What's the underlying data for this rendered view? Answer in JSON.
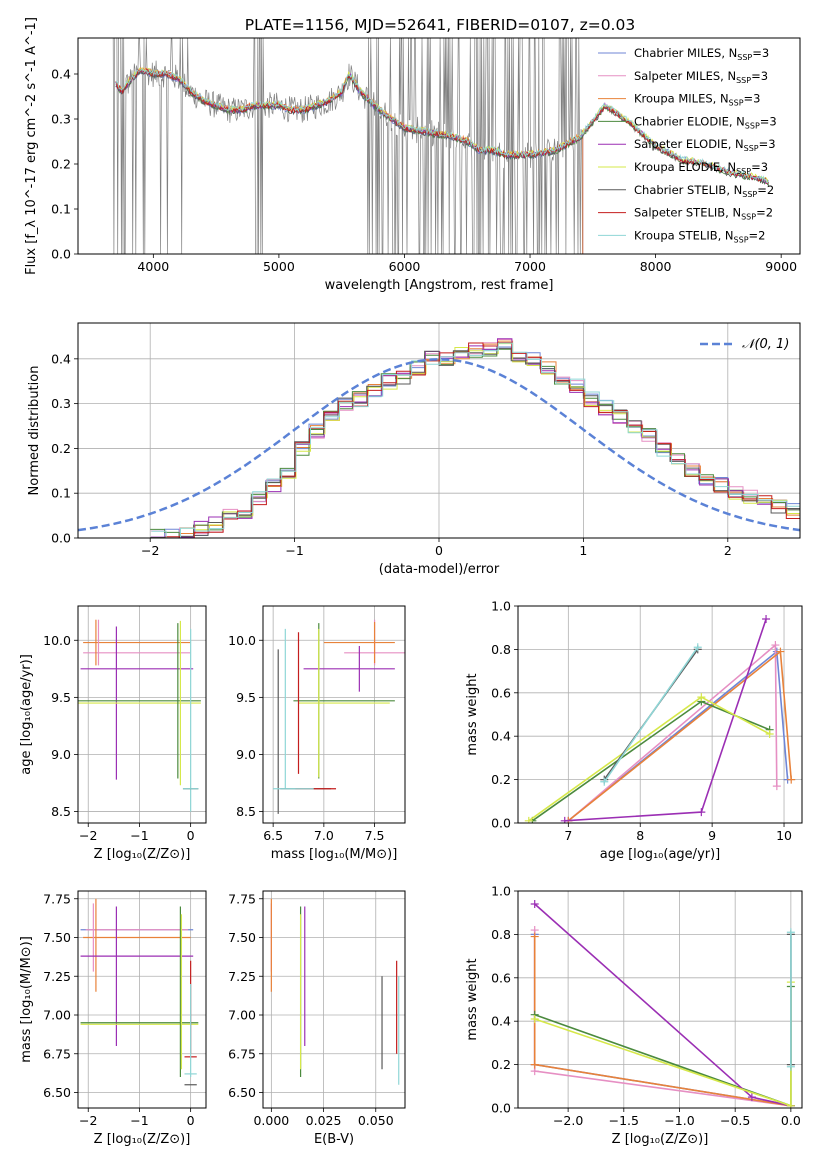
{
  "figure_title": "PLATE=1156, MJD=52641, FIBERID=0107, z=0.03",
  "colors": {
    "Chabrier MILES": "#6f86d6",
    "Salpeter MILES": "#e68fc3",
    "Kroupa MILES": "#e8823a",
    "Chabrier ELODIE": "#4b8a3e",
    "Salpeter ELODIE": "#9b2fb4",
    "Kroupa ELODIE": "#d6e84a",
    "Chabrier STELIB": "#5a5a5a",
    "Salpeter STELIB": "#c41e1e",
    "Kroupa STELIB": "#8fd6d6",
    "gaussian": "#5b82d6"
  },
  "chart_data": [
    {
      "id": "spectrum",
      "type": "line",
      "xlabel": "wavelength [Angstrom, rest frame]",
      "ylabel": "Flux [f_λ 10^-17 erg cm^-2 s^-1 A^-1]",
      "xlim": [
        3400,
        9150
      ],
      "ylim": [
        0,
        0.48
      ],
      "xticks": [
        4000,
        5000,
        6000,
        7000,
        8000,
        9000
      ],
      "yticks": [
        0.0,
        0.1,
        0.2,
        0.3,
        0.4
      ],
      "legend_loc": "upper right",
      "legend": [
        {
          "label": "Chabrier MILES, N",
          "sub": "SSP",
          "tail": "=3"
        },
        {
          "label": "Salpeter MILES, N",
          "sub": "SSP",
          "tail": "=3"
        },
        {
          "label": "Kroupa MILES, N",
          "sub": "SSP",
          "tail": "=3"
        },
        {
          "label": "Chabrier ELODIE, N",
          "sub": "SSP",
          "tail": "=3"
        },
        {
          "label": "Salpeter ELODIE, N",
          "sub": "SSP",
          "tail": "=3"
        },
        {
          "label": "Kroupa ELODIE, N",
          "sub": "SSP",
          "tail": "=3"
        },
        {
          "label": "Chabrier STELIB, N",
          "sub": "SSP",
          "tail": "=2"
        },
        {
          "label": "Salpeter STELIB, N",
          "sub": "SSP",
          "tail": "=2"
        },
        {
          "label": "Kroupa STELIB, N",
          "sub": "SSP",
          "tail": "=2"
        }
      ],
      "data_color": "#808080",
      "model_continuum": {
        "x": [
          3700,
          3750,
          3800,
          3900,
          4000,
          4100,
          4200,
          4300,
          4400,
          4500,
          4600,
          4700,
          4800,
          4900,
          5000,
          5100,
          5200,
          5300,
          5400,
          5500,
          5560,
          5650,
          5800,
          6000,
          6200,
          6400,
          6500,
          6600,
          6700,
          6800,
          7000,
          7200,
          7400,
          7600,
          7700,
          7800,
          8000,
          8200,
          8400,
          8600,
          8800,
          8900
        ],
        "y": [
          0.38,
          0.36,
          0.38,
          0.41,
          0.4,
          0.4,
          0.39,
          0.36,
          0.34,
          0.33,
          0.32,
          0.32,
          0.33,
          0.33,
          0.33,
          0.32,
          0.32,
          0.33,
          0.34,
          0.36,
          0.4,
          0.36,
          0.32,
          0.28,
          0.27,
          0.26,
          0.25,
          0.23,
          0.23,
          0.22,
          0.22,
          0.23,
          0.26,
          0.33,
          0.31,
          0.29,
          0.24,
          0.21,
          0.2,
          0.18,
          0.17,
          0.16
        ]
      }
    },
    {
      "id": "residuals",
      "type": "line",
      "xlabel": "(data-model)/error",
      "ylabel": "Normed distribution",
      "xlim": [
        -2.5,
        2.5
      ],
      "ylim": [
        0,
        0.48
      ],
      "xticks": [
        -2,
        -1,
        0,
        1,
        2
      ],
      "yticks": [
        0.0,
        0.1,
        0.2,
        0.3,
        0.4
      ],
      "grid": true,
      "legend": [
        {
          "label": "𝒩(0, 1)"
        }
      ],
      "legend_loc": "upper right",
      "bin_width": 0.1,
      "bin_start": -2.0,
      "hist": [
        0.002,
        0.004,
        0.008,
        0.02,
        0.03,
        0.05,
        0.06,
        0.09,
        0.12,
        0.15,
        0.2,
        0.24,
        0.27,
        0.3,
        0.31,
        0.33,
        0.35,
        0.36,
        0.38,
        0.4,
        0.4,
        0.41,
        0.42,
        0.42,
        0.43,
        0.41,
        0.4,
        0.38,
        0.36,
        0.34,
        0.31,
        0.29,
        0.27,
        0.25,
        0.23,
        0.2,
        0.18,
        0.15,
        0.13,
        0.12,
        0.1,
        0.09,
        0.08,
        0.07,
        0.06,
        0.05
      ]
    },
    {
      "id": "age_vs_Z",
      "type": "scatter",
      "xlabel": "Z [log₁₀(Z/Z⊙)]",
      "ylabel": "age  [log₁₀(age/yr)]",
      "xlim": [
        -2.2,
        0.3
      ],
      "ylim": [
        8.4,
        10.3
      ],
      "xticks": [
        -2,
        -1,
        0
      ],
      "yticks": [
        8.5,
        9.0,
        9.5,
        10.0
      ],
      "grid": true,
      "points": [
        {
          "s": "Salpeter MILES",
          "x": -1.05,
          "xe": 1.05,
          "y": 9.89,
          "ye": 0
        },
        {
          "s": "Kroupa MILES",
          "x": -1.05,
          "xe": 1.05,
          "y": 9.98,
          "ye": 0
        },
        {
          "s": "Salpeter MILES",
          "x": -1.8,
          "xe": 0,
          "y": 9.98,
          "ye": 0.2
        },
        {
          "s": "Kroupa MILES",
          "x": -1.85,
          "xe": 0,
          "y": 9.98,
          "ye": 0.2
        },
        {
          "s": "Salpeter ELODIE",
          "x": -1.05,
          "xe": 1.1,
          "y": 9.75,
          "ye": 0
        },
        {
          "s": "Salpeter ELODIE",
          "x": -1.45,
          "xe": 0,
          "y": 9.45,
          "ye": 0.67
        },
        {
          "s": "Chabrier ELODIE",
          "x": -1.0,
          "xe": 1.2,
          "y": 9.47,
          "ye": 0
        },
        {
          "s": "Kroupa ELODIE",
          "x": -1.0,
          "xe": 1.2,
          "y": 9.45,
          "ye": 0
        },
        {
          "s": "Chabrier ELODIE",
          "x": -0.25,
          "xe": 0,
          "y": 9.47,
          "ye": 0.68
        },
        {
          "s": "Kroupa ELODIE",
          "x": -0.2,
          "xe": 0,
          "y": 9.45,
          "ye": 0.72
        },
        {
          "s": "Kroupa STELIB",
          "x": 0.0,
          "xe": 0,
          "y": 9.3,
          "ye": 0.8
        },
        {
          "s": "Chabrier STELIB",
          "x": 0.0,
          "xe": 0.15,
          "y": 8.7,
          "ye": 0
        },
        {
          "s": "Kroupa STELIB",
          "x": 0.0,
          "xe": 0.15,
          "y": 8.7,
          "ye": 0
        }
      ]
    },
    {
      "id": "age_vs_mass",
      "type": "scatter",
      "xlabel": "mass [log₁₀(M/M⊙)]",
      "ylabel": "",
      "xlim": [
        6.4,
        7.8
      ],
      "ylim": [
        8.4,
        10.3
      ],
      "xticks": [
        6.5,
        7.0,
        7.5
      ],
      "yticks": [
        8.5,
        9.0,
        9.5,
        10.0
      ],
      "grid": true,
      "points": [
        {
          "s": "Salpeter MILES",
          "x": 7.5,
          "xe": 0.3,
          "y": 9.89,
          "ye": 0
        },
        {
          "s": "Kroupa MILES",
          "x": 7.35,
          "xe": 0.35,
          "y": 9.98,
          "ye": 0
        },
        {
          "s": "Salpeter MILES",
          "x": 7.5,
          "xe": 0,
          "y": 9.98,
          "ye": 0.2
        },
        {
          "s": "Kroupa MILES",
          "x": 7.5,
          "xe": 0,
          "y": 9.98,
          "ye": 0.18
        },
        {
          "s": "Salpeter ELODIE",
          "x": 7.25,
          "xe": 0.45,
          "y": 9.75,
          "ye": 0
        },
        {
          "s": "Salpeter ELODIE",
          "x": 7.35,
          "xe": 0,
          "y": 9.75,
          "ye": 0.2
        },
        {
          "s": "Chabrier ELODIE",
          "x": 7.2,
          "xe": 0.5,
          "y": 9.47,
          "ye": 0
        },
        {
          "s": "Kroupa ELODIE",
          "x": 7.2,
          "xe": 0.45,
          "y": 9.45,
          "ye": 0
        },
        {
          "s": "Chabrier ELODIE",
          "x": 6.95,
          "xe": 0,
          "y": 9.47,
          "ye": 0.68
        },
        {
          "s": "Kroupa ELODIE",
          "x": 6.95,
          "xe": 0,
          "y": 9.45,
          "ye": 0.65
        },
        {
          "s": "Chabrier STELIB",
          "x": 6.55,
          "xe": 0,
          "y": 9.2,
          "ye": 0.72
        },
        {
          "s": "Kroupa STELIB",
          "x": 6.62,
          "xe": 0,
          "y": 9.4,
          "ye": 0.7
        },
        {
          "s": "Salpeter STELIB",
          "x": 6.75,
          "xe": 0,
          "y": 9.45,
          "ye": 0.62
        },
        {
          "s": "Chabrier STELIB",
          "x": 6.82,
          "xe": 0.25,
          "y": 8.7,
          "ye": 0
        },
        {
          "s": "Salpeter STELIB",
          "x": 6.92,
          "xe": 0.2,
          "y": 8.7,
          "ye": 0
        },
        {
          "s": "Kroupa STELIB",
          "x": 6.7,
          "xe": 0.2,
          "y": 8.7,
          "ye": 0
        }
      ]
    },
    {
      "id": "weight_vs_age",
      "type": "line",
      "xlabel": "age  [log₁₀(age/yr)]",
      "ylabel": "mass weight",
      "xlim": [
        6.3,
        10.25
      ],
      "ylim": [
        0,
        1.0
      ],
      "xticks": [
        7,
        8,
        9,
        10
      ],
      "yticks": [
        0.0,
        0.2,
        0.4,
        0.6,
        0.8,
        1.0
      ],
      "grid": true,
      "series": [
        {
          "s": "Chabrier MILES",
          "x": [
            7.0,
            9.9,
            10.05
          ],
          "y": [
            0.01,
            0.79,
            0.2
          ]
        },
        {
          "s": "Salpeter MILES",
          "x": [
            7.0,
            9.88,
            9.9
          ],
          "y": [
            0.01,
            0.82,
            0.17
          ]
        },
        {
          "s": "Kroupa MILES",
          "x": [
            7.0,
            9.95,
            10.1
          ],
          "y": [
            0.01,
            0.79,
            0.2
          ]
        },
        {
          "s": "Chabrier ELODIE",
          "x": [
            6.5,
            8.85,
            9.8
          ],
          "y": [
            0.01,
            0.56,
            0.43
          ]
        },
        {
          "s": "Salpeter ELODIE",
          "x": [
            6.95,
            8.85,
            9.75
          ],
          "y": [
            0.01,
            0.05,
            0.94
          ]
        },
        {
          "s": "Kroupa ELODIE",
          "x": [
            6.45,
            8.85,
            9.8
          ],
          "y": [
            0.01,
            0.58,
            0.41
          ]
        },
        {
          "s": "Chabrier STELIB",
          "x": [
            7.5,
            8.8
          ],
          "y": [
            0.2,
            0.8
          ]
        },
        {
          "s": "Kroupa STELIB",
          "x": [
            7.5,
            8.8
          ],
          "y": [
            0.19,
            0.81
          ]
        }
      ]
    },
    {
      "id": "mass_vs_Z",
      "type": "scatter",
      "xlabel": "Z [log₁₀(Z/Z⊙)]",
      "ylabel": "mass [log₁₀(M/M⊙)]",
      "xlim": [
        -2.2,
        0.3
      ],
      "ylim": [
        6.4,
        7.8
      ],
      "xticks": [
        -2,
        -1,
        0
      ],
      "yticks": [
        6.5,
        6.75,
        7.0,
        7.25,
        7.5,
        7.75
      ],
      "grid": true,
      "points": [
        {
          "s": "Chabrier MILES",
          "x": -1.05,
          "xe": 1.1,
          "y": 7.55,
          "ye": 0
        },
        {
          "s": "Salpeter MILES",
          "x": -1.05,
          "xe": 1.0,
          "y": 7.55,
          "ye": 0
        },
        {
          "s": "Kroupa MILES",
          "x": -1.05,
          "xe": 1.05,
          "y": 7.5,
          "ye": 0
        },
        {
          "s": "Salpeter MILES",
          "x": -1.9,
          "xe": 0,
          "y": 7.5,
          "ye": 0.22
        },
        {
          "s": "Kroupa MILES",
          "x": -1.85,
          "xe": 0,
          "y": 7.45,
          "ye": 0.3
        },
        {
          "s": "Salpeter ELODIE",
          "x": -1.05,
          "xe": 1.1,
          "y": 7.38,
          "ye": 0
        },
        {
          "s": "Salpeter ELODIE",
          "x": -1.45,
          "xe": 0,
          "y": 7.25,
          "ye": 0.45
        },
        {
          "s": "Chabrier ELODIE",
          "x": -1.0,
          "xe": 1.15,
          "y": 6.95,
          "ye": 0
        },
        {
          "s": "Kroupa ELODIE",
          "x": -1.0,
          "xe": 1.15,
          "y": 6.94,
          "ye": 0
        },
        {
          "s": "Chabrier ELODIE",
          "x": -0.2,
          "xe": 0,
          "y": 7.15,
          "ye": 0.55
        },
        {
          "s": "Kroupa ELODIE",
          "x": -0.18,
          "xe": 0,
          "y": 7.15,
          "ye": 0.5
        },
        {
          "s": "Kroupa STELIB",
          "x": 0.0,
          "xe": 0.12,
          "y": 6.62,
          "ye": 0
        },
        {
          "s": "Salpeter STELIB",
          "x": 0.0,
          "xe": 0.12,
          "y": 6.73,
          "ye": 0
        },
        {
          "s": "Chabrier STELIB",
          "x": 0.0,
          "xe": 0.12,
          "y": 6.55,
          "ye": 0
        },
        {
          "s": "Salpeter STELIB",
          "x": 0.0,
          "xe": 0,
          "y": 7.05,
          "ye": 0.3
        },
        {
          "s": "Kroupa STELIB",
          "x": 0.0,
          "xe": 0,
          "y": 6.9,
          "ye": 0.3
        }
      ]
    },
    {
      "id": "mass_vs_ebv",
      "type": "scatter",
      "xlabel": "E(B-V)",
      "ylabel": "",
      "xlim": [
        -0.004,
        0.064
      ],
      "ylim": [
        6.4,
        7.8
      ],
      "xticks": [
        0.0,
        0.025,
        0.05
      ],
      "xticklabels": [
        "0.000",
        "0.025",
        "0.050"
      ],
      "yticks": [
        6.5,
        6.75,
        7.0,
        7.25,
        7.5,
        7.75
      ],
      "grid": true,
      "points": [
        {
          "s": "Salpeter MILES",
          "x": 0.0,
          "xe": 0,
          "y": 7.5,
          "ye": 0.22
        },
        {
          "s": "Kroupa MILES",
          "x": 0.0,
          "xe": 0,
          "y": 7.45,
          "ye": 0.3
        },
        {
          "s": "Salpeter ELODIE",
          "x": 0.016,
          "xe": 0,
          "y": 7.25,
          "ye": 0.45
        },
        {
          "s": "Chabrier ELODIE",
          "x": 0.014,
          "xe": 0,
          "y": 7.15,
          "ye": 0.55
        },
        {
          "s": "Kroupa ELODIE",
          "x": 0.014,
          "xe": 0,
          "y": 7.15,
          "ye": 0.5
        },
        {
          "s": "Chabrier STELIB",
          "x": 0.053,
          "xe": 0,
          "y": 6.95,
          "ye": 0.3
        },
        {
          "s": "Salpeter STELIB",
          "x": 0.06,
          "xe": 0,
          "y": 7.05,
          "ye": 0.3
        },
        {
          "s": "Kroupa STELIB",
          "x": 0.061,
          "xe": 0,
          "y": 6.9,
          "ye": 0.35
        }
      ]
    },
    {
      "id": "weight_vs_Z",
      "type": "line",
      "xlabel": "Z [log₁₀(Z/Z⊙)]",
      "ylabel": "mass weight",
      "xlim": [
        -2.45,
        0.1
      ],
      "ylim": [
        0,
        1.0
      ],
      "xticks": [
        -2.0,
        -1.5,
        -1.0,
        -0.5,
        0.0
      ],
      "xticklabels": [
        "−2.0",
        "−1.5",
        "−1.0",
        "−0.5",
        "0.0"
      ],
      "yticks": [
        0.0,
        0.2,
        0.4,
        0.6,
        0.8,
        1.0
      ],
      "grid": true,
      "series": [
        {
          "s": "Chabrier MILES",
          "x": [
            -2.3,
            -2.3,
            0.0
          ],
          "y": [
            0.8,
            0.2,
            0.01
          ]
        },
        {
          "s": "Salpeter MILES",
          "x": [
            -2.3,
            -2.3,
            0.0
          ],
          "y": [
            0.82,
            0.17,
            0.01
          ]
        },
        {
          "s": "Kroupa MILES",
          "x": [
            -2.3,
            -2.3,
            0.0
          ],
          "y": [
            0.79,
            0.2,
            0.01
          ]
        },
        {
          "s": "Chabrier ELODIE",
          "x": [
            -2.3,
            0.0,
            0.0
          ],
          "y": [
            0.43,
            0.01,
            0.56
          ]
        },
        {
          "s": "Salpeter ELODIE",
          "x": [
            -2.3,
            -0.35,
            0.0
          ],
          "y": [
            0.94,
            0.05,
            0.01
          ]
        },
        {
          "s": "Kroupa ELODIE",
          "x": [
            -2.3,
            0.0,
            0.0
          ],
          "y": [
            0.41,
            0.01,
            0.58
          ]
        },
        {
          "s": "Chabrier STELIB",
          "x": [
            0.0,
            0.0
          ],
          "y": [
            0.2,
            0.8
          ]
        },
        {
          "s": "Kroupa STELIB",
          "x": [
            0.0,
            0.0
          ],
          "y": [
            0.19,
            0.81
          ]
        }
      ]
    }
  ]
}
